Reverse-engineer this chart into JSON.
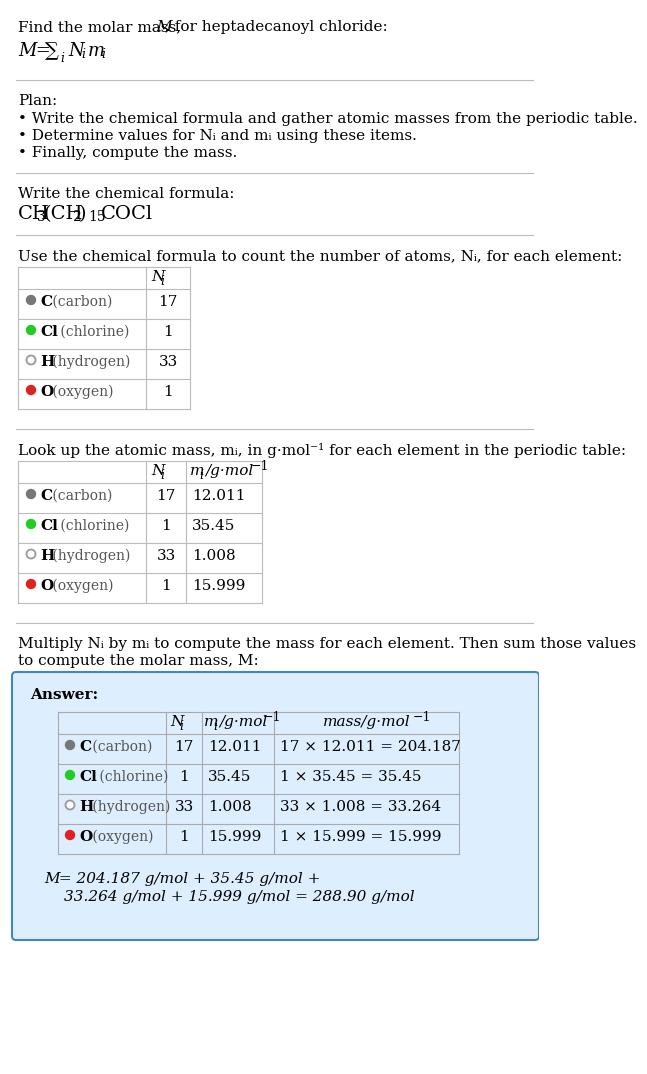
{
  "title_line1": "Find the molar mass, ",
  "title_M": "M",
  "title_line2": ", for heptadecanoyl chloride:",
  "plan_header": "Plan:",
  "plan_bullets": [
    "Write the chemical formula and gather atomic masses from the periodic table.",
    "Determine values for Nᵢ and mᵢ using these items.",
    "Finally, compute the mass."
  ],
  "chemical_formula_label": "Write the chemical formula:",
  "count_label": "Use the chemical formula to count the number of atoms, Nᵢ, for each element:",
  "lookup_label": "Look up the atomic mass, mᵢ, in g·mol⁻¹ for each element in the periodic table:",
  "multiply_label1": "Multiply Nᵢ by mᵢ to compute the mass for each element. Then sum those values",
  "multiply_label2": "to compute the molar mass, M:",
  "element_symbols": [
    "C",
    "Cl",
    "H",
    "O"
  ],
  "element_names": [
    "(carbon)",
    "(chlorine)",
    "(hydrogen)",
    "(oxygen)"
  ],
  "dot_colors": [
    "#777777",
    "#22cc22",
    "none",
    "#dd2222"
  ],
  "dot_edge_colors": [
    "#777777",
    "#22cc22",
    "#999999",
    "#dd2222"
  ],
  "N_i": [
    "17",
    "1",
    "33",
    "1"
  ],
  "m_i": [
    "12.011",
    "35.45",
    "1.008",
    "15.999"
  ],
  "mass_exprs": [
    "17 × 12.011 = 204.187",
    "1 × 35.45 = 35.45",
    "33 × 1.008 = 33.264",
    "1 × 15.999 = 15.999"
  ],
  "final_line1": "M = 204.187 g/mol + 35.45 g/mol +",
  "final_line2": "33.264 g/mol + 15.999 g/mol = 288.90 g/mol",
  "answer_bg_color": "#ddeeff",
  "answer_border_color": "#4488bb",
  "bg_color": "#ffffff",
  "text_color": "#000000"
}
